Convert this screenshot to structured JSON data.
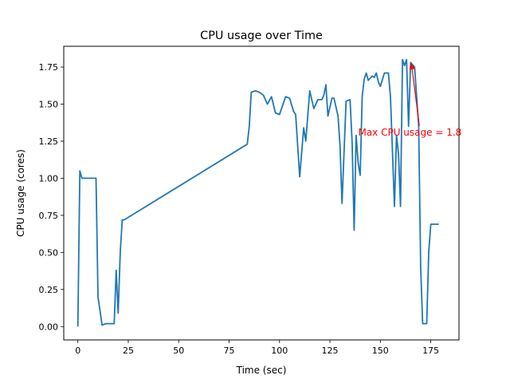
{
  "chart_data": {
    "type": "line",
    "title": "CPU usage over Time",
    "xlabel": "Time (sec)",
    "ylabel": "CPU usage (cores)",
    "xlim": [
      -7,
      189
    ],
    "ylim": [
      -0.09,
      1.89
    ],
    "xticks": [
      0,
      25,
      50,
      75,
      100,
      125,
      150,
      175
    ],
    "yticks": [
      0.0,
      0.25,
      0.5,
      0.75,
      1.0,
      1.25,
      1.5,
      1.75
    ],
    "xtick_labels": [
      "0",
      "25",
      "50",
      "75",
      "100",
      "125",
      "150",
      "175"
    ],
    "ytick_labels": [
      "0.00",
      "0.25",
      "0.50",
      "0.75",
      "1.00",
      "1.25",
      "1.50",
      "1.75"
    ],
    "grid": false,
    "line_color": "#1f77b4",
    "annotation": {
      "text": "Max CPU usage = 1.8",
      "point": [
        165,
        1.8
      ],
      "text_position": [
        139,
        1.31
      ],
      "color": "#ff0000"
    },
    "series": [
      {
        "x": [
          0,
          1,
          2,
          3,
          5,
          7,
          9,
          10,
          12,
          14,
          16,
          18,
          19,
          20,
          21,
          22,
          23,
          84,
          85,
          86,
          88,
          90,
          92,
          94,
          96,
          98,
          100,
          101,
          103,
          105,
          107,
          108,
          110,
          112,
          113,
          115,
          117,
          119,
          121,
          122,
          123,
          124,
          126,
          127,
          129,
          130,
          131,
          133,
          135,
          136,
          137,
          138,
          139,
          140,
          141,
          142,
          143,
          144,
          146,
          147,
          148,
          149,
          150,
          152,
          154,
          155,
          157,
          158,
          159,
          160,
          161,
          162,
          163,
          164,
          165,
          167,
          169,
          170,
          171,
          172,
          173,
          174,
          175,
          176,
          177,
          179
        ],
        "y": [
          0.0,
          1.05,
          1.0,
          1.0,
          1.0,
          1.0,
          1.0,
          0.2,
          0.01,
          0.02,
          0.02,
          0.02,
          0.38,
          0.09,
          0.5,
          0.72,
          0.72,
          1.23,
          1.35,
          1.58,
          1.59,
          1.58,
          1.56,
          1.5,
          1.55,
          1.44,
          1.43,
          1.47,
          1.55,
          1.54,
          1.45,
          1.43,
          1.01,
          1.34,
          1.25,
          1.59,
          1.47,
          1.53,
          1.53,
          1.56,
          1.63,
          1.42,
          1.54,
          1.54,
          1.42,
          1.22,
          0.83,
          1.52,
          1.53,
          1.24,
          0.65,
          1.29,
          1.1,
          1.02,
          1.55,
          1.67,
          1.71,
          1.66,
          1.69,
          1.68,
          1.71,
          1.65,
          1.62,
          1.71,
          1.71,
          1.55,
          0.81,
          1.29,
          1.16,
          0.81,
          1.8,
          1.76,
          1.8,
          1.35,
          1.78,
          1.75,
          1.35,
          0.4,
          0.02,
          0.02,
          0.02,
          0.5,
          0.69,
          0.69,
          0.69,
          0.69
        ]
      }
    ]
  }
}
